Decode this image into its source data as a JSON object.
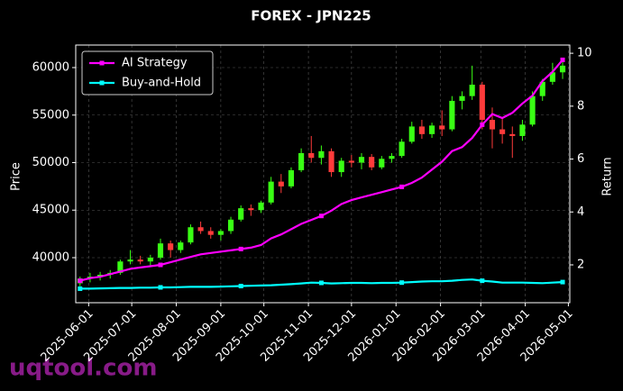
{
  "chart_data": {
    "type": "candlestick",
    "title": "FOREX - JPN225",
    "ylabel": "Price",
    "y2label": "Return",
    "watermark": "uqtool.com",
    "xlim": [
      "2025-05-23",
      "2026-05-02"
    ],
    "xticks": [
      "2025-06-01",
      "2025-07-01",
      "2025-08-01",
      "2025-09-01",
      "2025-10-01",
      "2025-11-01",
      "2025-12-01",
      "2026-01-01",
      "2026-02-01",
      "2026-03-01",
      "2026-04-01",
      "2026-05-01"
    ],
    "ylim": [
      35260,
      62370
    ],
    "yticks": [
      40000,
      45000,
      50000,
      55000,
      60000
    ],
    "y2lim": [
      0.57,
      10.31
    ],
    "y2ticks": [
      2,
      4,
      6,
      8,
      10
    ],
    "grid": true,
    "legend": "upper-left",
    "up_color": "#39ff14",
    "down_color": "#ff3b3b",
    "x": [
      "2025-05-26",
      "2025-06-02",
      "2025-06-09",
      "2025-06-16",
      "2025-06-23",
      "2025-06-30",
      "2025-07-07",
      "2025-07-14",
      "2025-07-21",
      "2025-07-28",
      "2025-08-04",
      "2025-08-11",
      "2025-08-18",
      "2025-08-25",
      "2025-09-01",
      "2025-09-08",
      "2025-09-15",
      "2025-09-22",
      "2025-09-29",
      "2025-10-06",
      "2025-10-13",
      "2025-10-20",
      "2025-10-27",
      "2025-11-03",
      "2025-11-10",
      "2025-11-17",
      "2025-11-24",
      "2025-12-01",
      "2025-12-08",
      "2025-12-15",
      "2025-12-22",
      "2025-12-29",
      "2026-01-05",
      "2026-01-12",
      "2026-01-19",
      "2026-01-26",
      "2026-02-02",
      "2026-02-09",
      "2026-02-16",
      "2026-02-23",
      "2026-03-02",
      "2026-03-09",
      "2026-03-16",
      "2026-03-23",
      "2026-03-30",
      "2026-04-06",
      "2026-04-13",
      "2026-04-20",
      "2026-04-27"
    ],
    "open": [
      37300,
      37800,
      38000,
      38200,
      38400,
      39600,
      39800,
      39600,
      40000,
      41500,
      40800,
      41600,
      43200,
      42800,
      42400,
      42800,
      44000,
      45200,
      45000,
      45800,
      48000,
      47500,
      49200,
      51000,
      50500,
      51200,
      49000,
      50200,
      50000,
      50600,
      49500,
      50400,
      50700,
      52200,
      53800,
      53000,
      53900,
      53500,
      56500,
      57000,
      58200,
      54500,
      53500,
      53000,
      52800,
      54000,
      57000,
      58500,
      59500
    ],
    "high": [
      38000,
      38400,
      38500,
      38700,
      39800,
      40800,
      40200,
      40300,
      42000,
      41800,
      41800,
      43500,
      43800,
      43200,
      43000,
      44300,
      45500,
      45600,
      46000,
      48500,
      48800,
      49500,
      51500,
      52800,
      51800,
      51500,
      50500,
      50800,
      51000,
      50900,
      50700,
      51000,
      52500,
      54300,
      54500,
      54200,
      55500,
      57000,
      57500,
      60200,
      58500,
      55800,
      54800,
      53800,
      54500,
      57500,
      58800,
      60500,
      60800
    ],
    "low": [
      37000,
      37400,
      37600,
      37800,
      38200,
      39300,
      39300,
      39200,
      39800,
      40000,
      40500,
      41400,
      42500,
      42000,
      41800,
      42500,
      43800,
      44400,
      44700,
      45600,
      46800,
      47300,
      49000,
      50000,
      49800,
      48500,
      48500,
      49500,
      49300,
      49200,
      49300,
      50000,
      50500,
      52000,
      52500,
      52600,
      52800,
      53300,
      55600,
      56600,
      53500,
      51500,
      52000,
      50500,
      52300,
      53800,
      56500,
      58200,
      58800
    ],
    "close": [
      37800,
      38000,
      38200,
      38400,
      39600,
      39800,
      39600,
      40000,
      41500,
      40800,
      41600,
      43200,
      42800,
      42400,
      42800,
      44000,
      45200,
      45000,
      45800,
      48000,
      47500,
      49200,
      51000,
      50500,
      51200,
      49000,
      50200,
      50000,
      50600,
      49500,
      50400,
      50700,
      52200,
      53800,
      53000,
      53900,
      53500,
      56500,
      57000,
      58200,
      54500,
      53500,
      53000,
      52800,
      54000,
      57000,
      58500,
      59500,
      60200
    ],
    "series": [
      {
        "name": "AI Strategy",
        "color": "#ff00ff",
        "axis": "y2",
        "values": [
          1.4,
          1.5,
          1.55,
          1.65,
          1.75,
          1.85,
          1.9,
          1.95,
          2.0,
          2.1,
          2.2,
          2.3,
          2.4,
          2.45,
          2.5,
          2.55,
          2.6,
          2.65,
          2.75,
          3.0,
          3.15,
          3.35,
          3.55,
          3.7,
          3.85,
          4.05,
          4.3,
          4.45,
          4.55,
          4.65,
          4.75,
          4.85,
          4.95,
          5.1,
          5.3,
          5.6,
          5.9,
          6.3,
          6.45,
          6.8,
          7.3,
          7.7,
          7.55,
          7.75,
          8.1,
          8.4,
          8.95,
          9.3,
          9.75
        ]
      },
      {
        "name": "Buy-and-Hold",
        "color": "#00ffff",
        "axis": "y2",
        "values": [
          1.1,
          1.1,
          1.11,
          1.12,
          1.13,
          1.13,
          1.14,
          1.14,
          1.15,
          1.15,
          1.16,
          1.17,
          1.17,
          1.17,
          1.18,
          1.19,
          1.2,
          1.21,
          1.22,
          1.23,
          1.25,
          1.27,
          1.3,
          1.33,
          1.32,
          1.3,
          1.31,
          1.32,
          1.32,
          1.31,
          1.32,
          1.32,
          1.33,
          1.35,
          1.37,
          1.38,
          1.38,
          1.4,
          1.43,
          1.45,
          1.4,
          1.37,
          1.33,
          1.33,
          1.33,
          1.32,
          1.31,
          1.33,
          1.35
        ]
      }
    ]
  }
}
